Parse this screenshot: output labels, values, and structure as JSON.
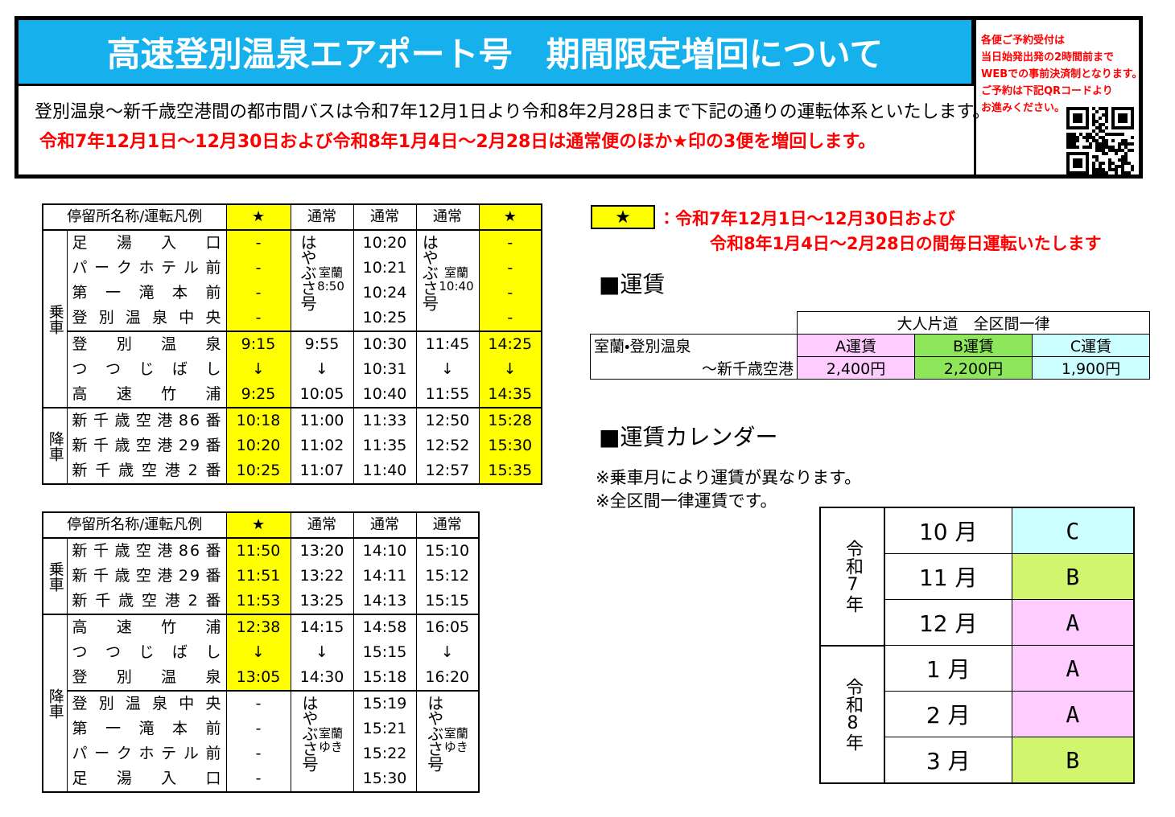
{
  "header": {
    "title": "高速登別温泉エアポート号　期間限定増回について",
    "lead": "登別温泉～新千歳空港間の都市間バスは令和7年12月1日より令和8年2月28日まで下記の通りの運転体系といたします。",
    "highlight": "令和7年12月1日～12月30日および令和8年1月4日～2月28日は通常便のほか★印の3便を増回します。",
    "notice": [
      "各便ご予約受付は",
      "当日始発出発の2時間前まで",
      "WEBでの事前決済制となります。",
      "ご予約は下記QRコードより",
      "お進みください。"
    ]
  },
  "timetables": [
    {
      "columns": [
        "停留所名称/運転凡例",
        "★",
        "通常",
        "通常",
        "通常",
        "★"
      ],
      "groups": [
        "乗車",
        "降車"
      ],
      "rows": [
        {
          "stop": "足湯入口",
          "times": [
            "-",
            "10:20",
            "-"
          ]
        },
        {
          "stop": "パークホテル前",
          "times": [
            "-",
            "10:21",
            "-"
          ]
        },
        {
          "stop": "第一滝本前",
          "times": [
            "-",
            "10:24",
            "-"
          ]
        },
        {
          "stop": "登別温泉中央",
          "times": [
            "-",
            "10:25",
            "-"
          ]
        },
        {
          "stop": "登別温泉",
          "times": [
            "9:15",
            "9:55",
            "10:30",
            "11:45",
            "14:25"
          ]
        },
        {
          "stop": "つつじばし",
          "times": [
            "↓",
            "↓",
            "10:31",
            "↓",
            "↓"
          ]
        },
        {
          "stop": "高速竹浦",
          "times": [
            "9:25",
            "10:05",
            "10:40",
            "11:55",
            "14:35"
          ]
        },
        {
          "stop": "新千歳空港86番",
          "times": [
            "10:18",
            "11:00",
            "11:33",
            "12:50",
            "15:28"
          ]
        },
        {
          "stop": "新千歳空港29番",
          "times": [
            "10:20",
            "11:02",
            "11:35",
            "12:52",
            "15:30"
          ]
        },
        {
          "stop": "新千歳空港2番",
          "times": [
            "10:25",
            "11:07",
            "11:40",
            "12:57",
            "15:35"
          ]
        }
      ],
      "specials": [
        {
          "name": "はやぶさ号",
          "note": [
            "室蘭",
            "8:50"
          ]
        },
        {
          "name": "はやぶさ号",
          "note": [
            "室蘭",
            "10:40"
          ]
        }
      ]
    },
    {
      "columns": [
        "停留所名称/運転凡例",
        "★",
        "通常",
        "通常",
        "通常"
      ],
      "groups": [
        "乗車",
        "降車"
      ],
      "rows": [
        {
          "stop": "新千歳空港86番",
          "times": [
            "11:50",
            "13:20",
            "14:10",
            "15:10"
          ]
        },
        {
          "stop": "新千歳空港29番",
          "times": [
            "11:51",
            "13:22",
            "14:11",
            "15:12"
          ]
        },
        {
          "stop": "新千歳空港2番",
          "times": [
            "11:53",
            "13:25",
            "14:13",
            "15:15"
          ]
        },
        {
          "stop": "高速竹浦",
          "times": [
            "12:38",
            "14:15",
            "14:58",
            "16:05"
          ]
        },
        {
          "stop": "つつじばし",
          "times": [
            "↓",
            "↓",
            "15:15",
            "↓"
          ]
        },
        {
          "stop": "登別温泉",
          "times": [
            "13:05",
            "14:30",
            "15:18",
            "16:20"
          ]
        },
        {
          "stop": "登別温泉中央",
          "times": [
            "-",
            "15:19"
          ]
        },
        {
          "stop": "第一滝本前",
          "times": [
            "-",
            "15:21"
          ]
        },
        {
          "stop": "パークホテル前",
          "times": [
            "-",
            "15:22"
          ]
        },
        {
          "stop": "足湯入口",
          "times": [
            "-",
            "15:30"
          ]
        }
      ],
      "specials": [
        {
          "name": "はやぶさ号",
          "note": [
            "室蘭",
            "ゆき"
          ]
        },
        {
          "name": "はやぶさ号",
          "note": [
            "室蘭",
            "ゆき"
          ]
        }
      ]
    }
  ],
  "legend": {
    "mark": "★",
    "lines": [
      "：令和7年12月1日～12月30日および",
      "令和8年1月4日～2月28日の間毎日運転いたします"
    ]
  },
  "fare": {
    "heading": "■運賃",
    "span_header": "大人片道　全区間一律",
    "route": [
      "室蘭・登別温泉",
      "～新千歳空港"
    ],
    "columns": [
      {
        "name": "A運賃",
        "price": "2,400円"
      },
      {
        "name": "B運賃",
        "price": "2,200円"
      },
      {
        "name": "C運賃",
        "price": "1,900円"
      }
    ]
  },
  "calendar": {
    "heading": "■運賃カレンダー",
    "notes": [
      "※乗車月により運賃が異なります。",
      "※全区間一律運賃です。"
    ],
    "eras": [
      {
        "era": "令和7年",
        "months": [
          {
            "month": "10 月",
            "fare": "C"
          },
          {
            "month": "11 月",
            "fare": "B"
          },
          {
            "month": "12 月",
            "fare": "A"
          }
        ]
      },
      {
        "era": "令和8年",
        "months": [
          {
            "month": "1 月",
            "fare": "A"
          },
          {
            "month": "2 月",
            "fare": "A"
          },
          {
            "month": "3 月",
            "fare": "B"
          }
        ]
      }
    ]
  }
}
